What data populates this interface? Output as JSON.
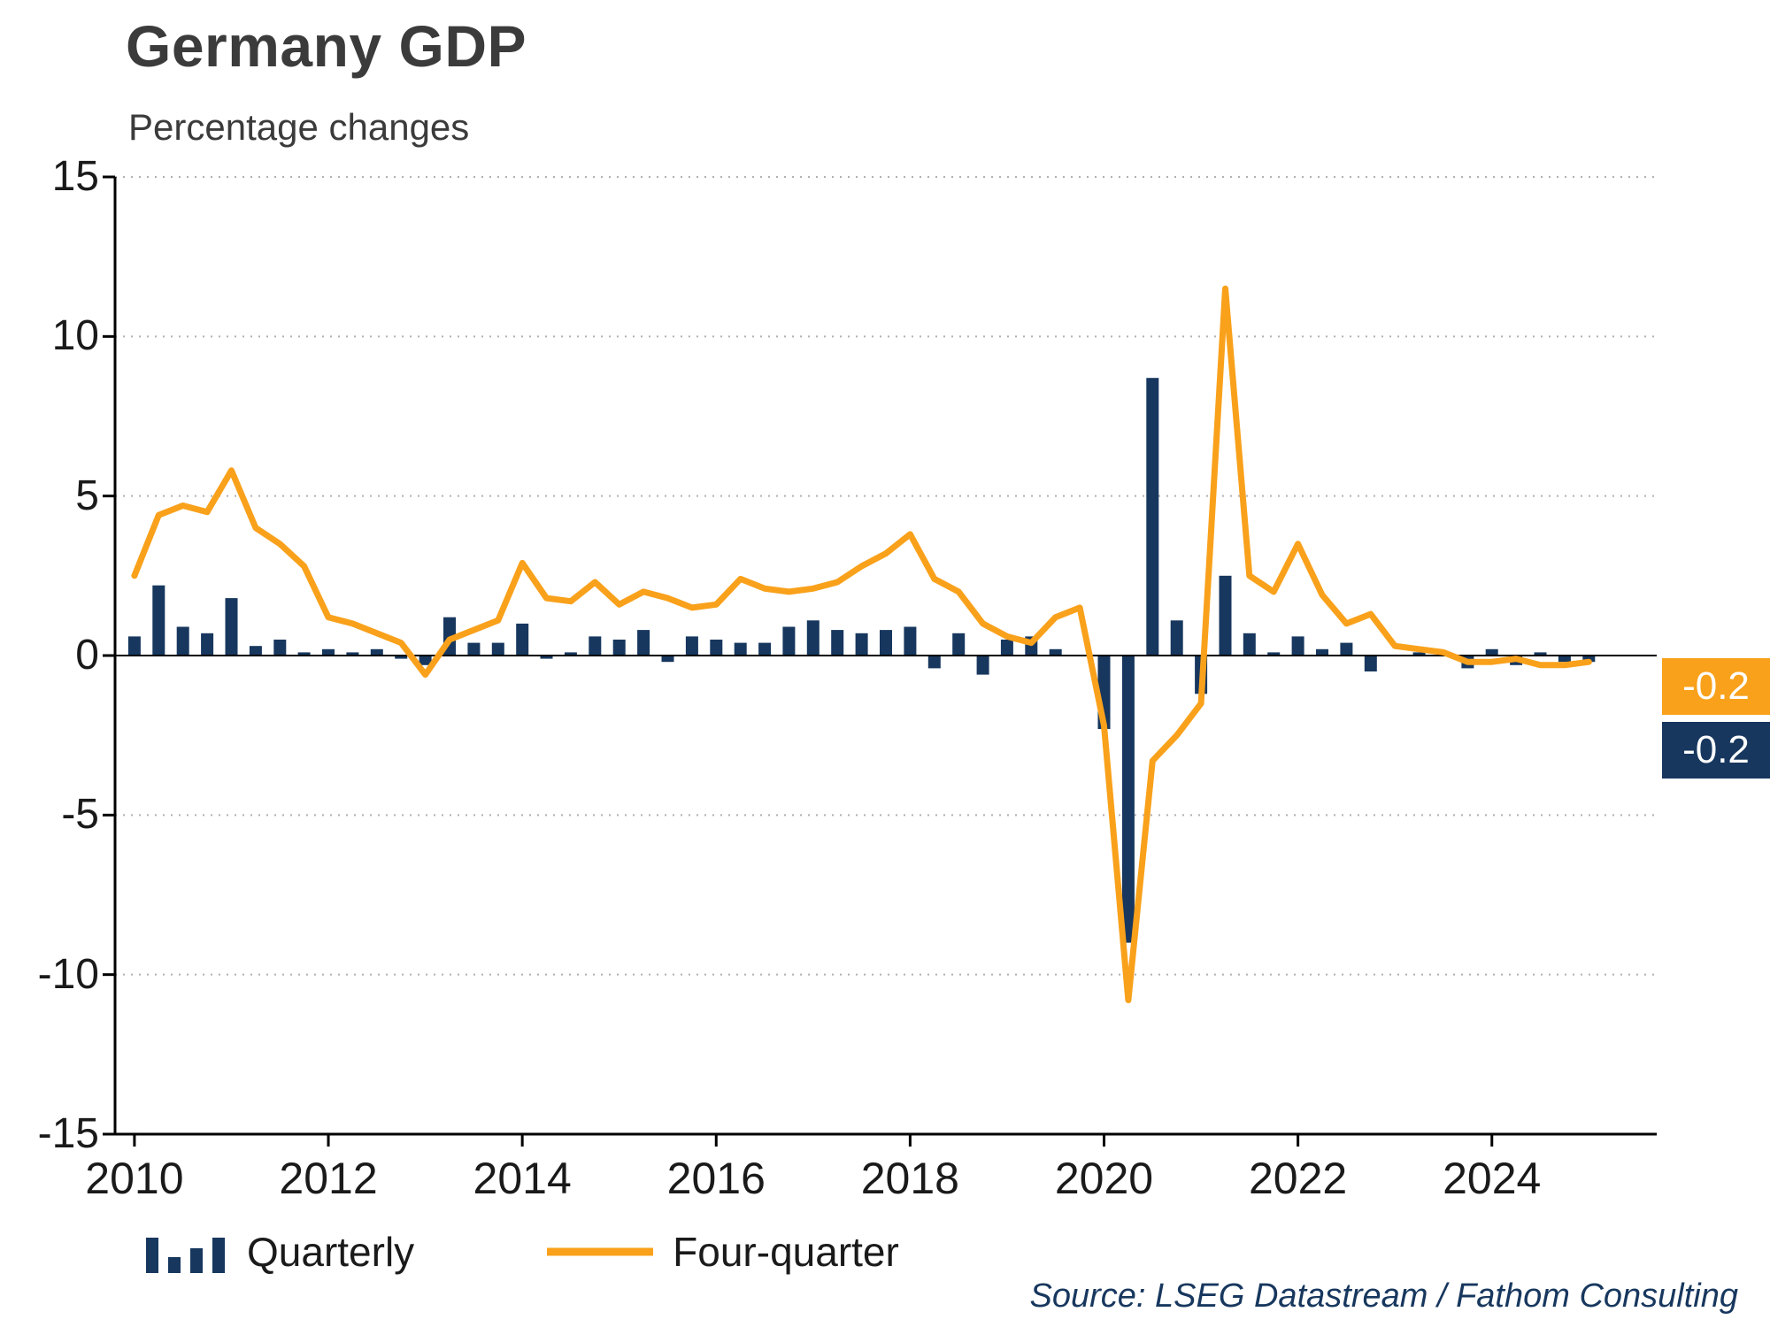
{
  "title": "Germany GDP",
  "subtitle": "Percentage changes",
  "source": "Source: LSEG Datastream / Fathom Consulting",
  "legend": {
    "quarterly": "Quarterly",
    "four_quarter": "Four-quarter"
  },
  "end_labels": {
    "four_quarter": "-0.2",
    "quarterly": "-0.2"
  },
  "colors": {
    "navy": "#17375E",
    "orange": "#F9A11B",
    "grid": "#b0b0b0",
    "axis": "#000000",
    "text": "#1a1a1a",
    "title": "#3b3b3b"
  },
  "chart_data": {
    "type": "bar",
    "title": "Germany GDP",
    "subtitle": "Percentage changes",
    "ylabel": "Percentage changes",
    "ylim": [
      -15,
      15
    ],
    "y_ticks": [
      15,
      10,
      5,
      0,
      -5,
      -10,
      -15
    ],
    "x_ticks": [
      2010,
      2012,
      2014,
      2016,
      2018,
      2020,
      2022,
      2024
    ],
    "x_start": 2010.0,
    "x_step_years": 0.25,
    "grid": "horizontal-dotted",
    "legend_position": "bottom",
    "series": [
      {
        "name": "Quarterly",
        "type": "bar",
        "color": "#17375E",
        "values": [
          0.6,
          2.2,
          0.9,
          0.7,
          1.8,
          0.3,
          0.5,
          0.1,
          0.2,
          0.1,
          0.2,
          -0.1,
          -0.3,
          1.2,
          0.4,
          0.4,
          1.0,
          -0.1,
          0.1,
          0.6,
          0.5,
          0.8,
          -0.2,
          0.6,
          0.5,
          0.4,
          0.4,
          0.9,
          1.1,
          0.8,
          0.7,
          0.8,
          0.9,
          -0.4,
          0.7,
          -0.6,
          0.5,
          0.6,
          0.2,
          0.0,
          -2.3,
          -9.0,
          8.7,
          1.1,
          -1.2,
          2.5,
          0.7,
          0.1,
          0.6,
          0.2,
          0.4,
          -0.5,
          0.0,
          0.1,
          0.1,
          -0.4,
          0.2,
          -0.3,
          0.1,
          -0.2,
          -0.2
        ]
      },
      {
        "name": "Four-quarter",
        "type": "line",
        "color": "#F9A11B",
        "values": [
          2.5,
          4.4,
          4.7,
          4.5,
          5.8,
          4.0,
          3.5,
          2.8,
          1.2,
          1.0,
          0.7,
          0.4,
          -0.6,
          0.5,
          0.8,
          1.1,
          2.9,
          1.8,
          1.7,
          2.3,
          1.6,
          2.0,
          1.8,
          1.5,
          1.6,
          2.4,
          2.1,
          2.0,
          2.1,
          2.3,
          2.8,
          3.2,
          3.8,
          2.4,
          2.0,
          1.0,
          0.6,
          0.4,
          1.2,
          1.5,
          -2.2,
          -10.8,
          -3.3,
          -2.5,
          -1.5,
          11.5,
          2.5,
          2.0,
          3.5,
          1.9,
          1.0,
          1.3,
          0.3,
          0.2,
          0.1,
          -0.2,
          -0.2,
          -0.1,
          -0.3,
          -0.3,
          -0.2
        ]
      }
    ]
  }
}
